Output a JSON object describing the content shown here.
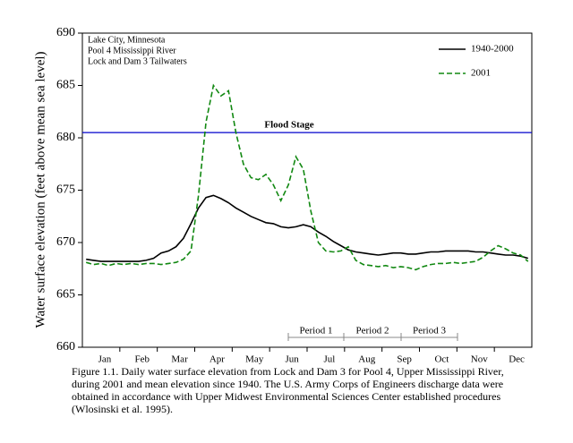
{
  "chart_data": {
    "type": "line",
    "y_label": "Water surface elevation (feet above mean sea level)",
    "annotations": [
      "Lake City, Minnesota",
      "Pool 4 Mississippi River",
      "Lock and Dam 3 Tailwaters"
    ],
    "flood_stage": {
      "value": 680.5,
      "label": "Flood Stage",
      "color": "#0000cc"
    },
    "periods": [
      "Period 1",
      "Period 2",
      "Period 3"
    ],
    "caption": [
      "Figure 1.1. Daily water surface elevation from Lock and Dam 3 for Pool 4, Upper Mississippi River,",
      "during 2001 and mean elevation since 1940.  The U.S. Army Corps of Engineers discharge data were",
      "obtained in accordance with Upper Midwest Environmental Sciences Center established procedures",
      "(Wlosinski et al. 1995)."
    ],
    "categories": [
      null,
      null,
      "Jan",
      null,
      null,
      null,
      null,
      "Feb",
      null,
      null,
      null,
      null,
      "Mar",
      null,
      null,
      null,
      null,
      "Apr",
      null,
      null,
      null,
      null,
      "May",
      null,
      null,
      null,
      null,
      "Jun",
      null,
      null,
      null,
      null,
      "Jul",
      null,
      null,
      null,
      null,
      "Aug",
      null,
      null,
      null,
      null,
      "Sep",
      null,
      null,
      null,
      null,
      "Oct",
      null,
      null,
      null,
      null,
      "Nov",
      null,
      null,
      null,
      null,
      "Dec",
      null,
      null
    ],
    "series": [
      {
        "name": "1940-2000",
        "color": "#000000",
        "dash": false,
        "values": [
          668.4,
          668.3,
          668.2,
          668.2,
          668.2,
          668.2,
          668.2,
          668.2,
          668.3,
          668.5,
          669,
          669.2,
          669.6,
          670.4,
          671.8,
          673.3,
          674.3,
          674.5,
          674.2,
          673.8,
          673.3,
          672.9,
          672.5,
          672.2,
          671.9,
          671.8,
          671.5,
          671.4,
          671.5,
          671.7,
          671.5,
          671,
          670.6,
          670.1,
          669.7,
          669.3,
          669.1,
          669,
          668.9,
          668.8,
          668.9,
          669,
          669,
          668.9,
          668.9,
          669,
          669.1,
          669.1,
          669.2,
          669.2,
          669.2,
          669.2,
          669.1,
          669.1,
          669,
          668.9,
          668.8,
          668.8,
          668.7,
          668.5
        ]
      },
      {
        "name": "2001",
        "color": "#118811",
        "dash": true,
        "values": [
          668.1,
          667.9,
          668,
          667.8,
          668,
          667.9,
          668,
          667.9,
          668,
          668,
          667.9,
          668,
          668.1,
          668.4,
          669.2,
          674.5,
          681.5,
          685,
          684,
          684.5,
          680.5,
          677.5,
          676.2,
          676,
          676.5,
          675.5,
          674,
          675.5,
          678.2,
          677,
          673,
          670,
          669.2,
          669.1,
          669.2,
          669.6,
          668.3,
          667.9,
          667.8,
          667.7,
          667.8,
          667.6,
          667.7,
          667.6,
          667.4,
          667.7,
          667.9,
          668,
          668,
          668.1,
          668,
          668.1,
          668.2,
          668.6,
          669.2,
          669.7,
          669.4,
          669,
          668.8,
          668.2
        ]
      }
    ],
    "ylim": [
      660,
      690
    ],
    "yticks": [
      660,
      665,
      670,
      675,
      680,
      685,
      690
    ],
    "grid": false,
    "legend": "upper right"
  }
}
